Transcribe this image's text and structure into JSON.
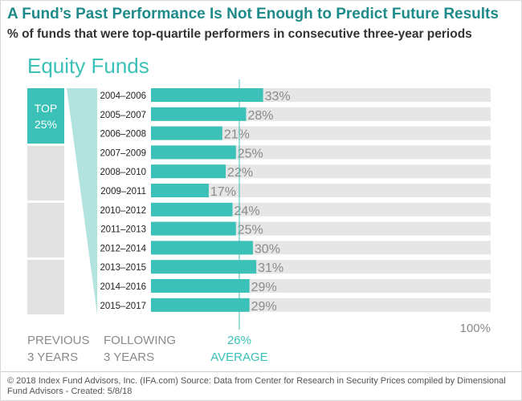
{
  "header": {
    "title": "A Fund’s Past Performance Is Not Enough to Predict Future Results",
    "subtitle": "% of funds that were top-quartile performers in consecutive three-year periods"
  },
  "section_title": "Equity Funds",
  "quartile_column": {
    "top_label_line1": "TOP",
    "top_label_line2": "25%"
  },
  "captions": {
    "previous": [
      "PREVIOUS",
      "3 YEARS"
    ],
    "following": [
      "FOLLOWING",
      "3 YEARS"
    ],
    "average_value": "26%",
    "average_label": "AVERAGE",
    "max_label": "100%"
  },
  "footer": {
    "text": "© 2018 Index Fund Advisors, Inc. (IFA.com)   Source: Data from Center for Research in Security Prices compiled by Dimensional Fund Advisors - Created: 5/8/18"
  },
  "colors": {
    "teal": "#3cc1b8",
    "teal_light": "#b3e3df",
    "gray_bar": "#e6e6e6",
    "gray_box": "#e1e1e1",
    "title": "#1f8a8a"
  },
  "chart_data": {
    "type": "bar",
    "orientation": "horizontal",
    "categories": [
      "2004–2006",
      "2005–2007",
      "2006–2008",
      "2007–2009",
      "2008–2010",
      "2009–2011",
      "2010–2012",
      "2011–2013",
      "2012–2014",
      "2013–2015",
      "2014–2016",
      "2015–2017"
    ],
    "values": [
      33,
      28,
      21,
      25,
      22,
      17,
      24,
      25,
      30,
      31,
      29,
      29
    ],
    "data_labels": [
      "33%",
      "28%",
      "21%",
      "25%",
      "22%",
      "17%",
      "24%",
      "25%",
      "30%",
      "31%",
      "29%",
      "29%"
    ],
    "xlim": [
      0,
      100
    ],
    "average": 26,
    "grid": false
  }
}
